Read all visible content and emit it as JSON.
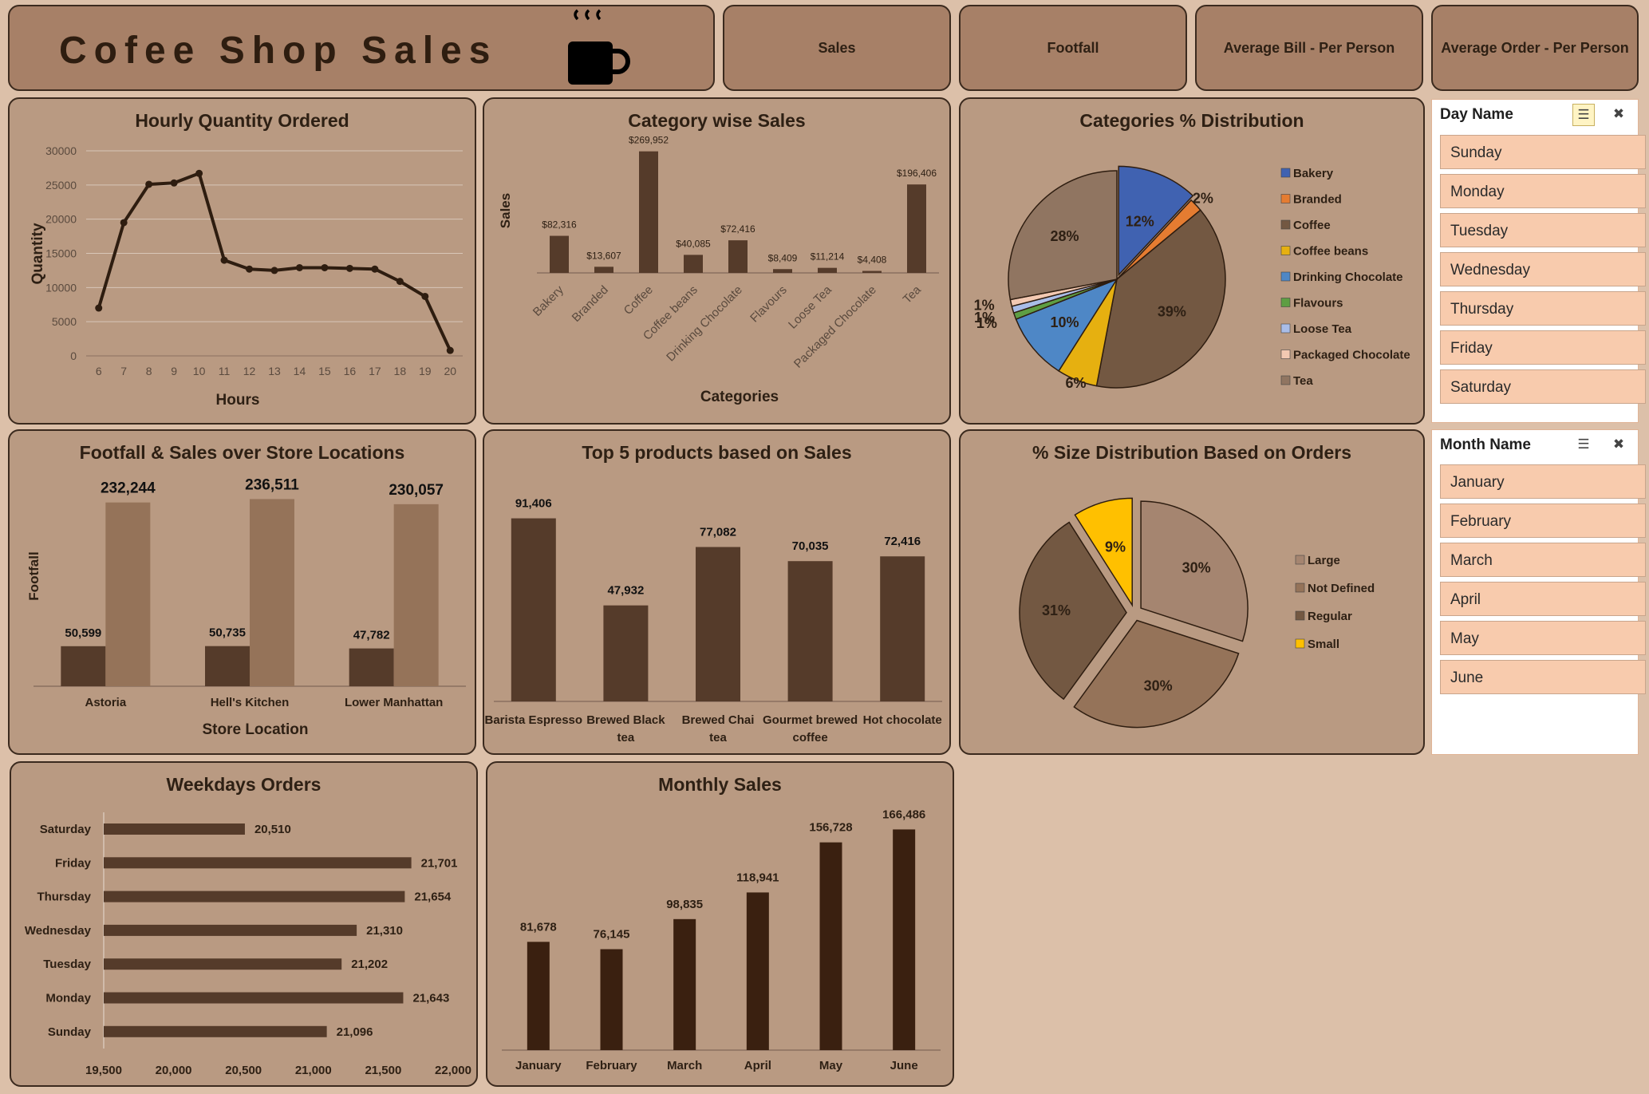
{
  "header": {
    "title": "Cofee Shop Sales",
    "kpis": [
      "Sales",
      "Footfall",
      "Average Bill - Per Person",
      "Average Order - Per Person"
    ]
  },
  "colors": {
    "dark_brown": "#553b2a",
    "light_brown": "#957359",
    "panel": "#b99a82",
    "line": "#2e1d10",
    "monthly_bar": "#3a2010",
    "slicer_item": "#f8cbad"
  },
  "slicers": {
    "day": {
      "title": "Day Name",
      "items": [
        "Sunday",
        "Monday",
        "Tuesday",
        "Wednesday",
        "Thursday",
        "Friday",
        "Saturday"
      ]
    },
    "month": {
      "title": "Month Name",
      "items": [
        "January",
        "February",
        "March",
        "April",
        "May",
        "June"
      ]
    }
  },
  "chart_data": [
    {
      "id": "hourly",
      "type": "line",
      "title": "Hourly Quantity Ordered",
      "xlabel": "Hours",
      "ylabel": "Quantity",
      "x": [
        6,
        7,
        8,
        9,
        10,
        11,
        12,
        13,
        14,
        15,
        16,
        17,
        18,
        19,
        20
      ],
      "values": [
        7000,
        19500,
        25100,
        25300,
        26700,
        14000,
        12700,
        12500,
        12900,
        12900,
        12800,
        12700,
        10900,
        8700,
        800
      ],
      "ylim": [
        0,
        30000
      ],
      "yticks": [
        "0",
        "5000",
        "10000",
        "15000",
        "20000",
        "25000",
        "30000"
      ],
      "grid": true
    },
    {
      "id": "category",
      "type": "bar",
      "title": "Category wise Sales",
      "xlabel": "Categories",
      "ylabel": "Sales",
      "categories": [
        "Bakery",
        "Branded",
        "Coffee",
        "Coffee beans",
        "Drinking Chocolate",
        "Flavours",
        "Loose Tea",
        "Packaged Chocolate",
        "Tea"
      ],
      "values": [
        82316,
        13607,
        269952,
        40085,
        72416,
        8409,
        11214,
        4408,
        196406
      ],
      "labels": [
        "$82,316",
        "$13,607",
        "$269,952",
        "$40,085",
        "$72,416",
        "$8,409",
        "$11,214",
        "$4,408",
        "$196,406"
      ],
      "ylim": [
        0,
        280000
      ]
    },
    {
      "id": "catpie",
      "type": "pie",
      "title": "Categories % Distribution",
      "categories": [
        "Bakery",
        "Branded",
        "Coffee",
        "Coffee beans",
        "Drinking Chocolate",
        "Flavours",
        "Loose Tea",
        "Packaged Chocolate",
        "Tea"
      ],
      "values": [
        12,
        2,
        39,
        6,
        10,
        1,
        1,
        1,
        28
      ],
      "labels": [
        "12%",
        "2%",
        "39%",
        "6%",
        "10%",
        "1%",
        "1%",
        "1%",
        "28%"
      ],
      "colors": [
        "#4062b1",
        "#e57c31",
        "#735842",
        "#e6b010",
        "#4e87c6",
        "#5e9e43",
        "#a9bde8",
        "#f3c9b2",
        "#907561"
      ],
      "legend": "right"
    },
    {
      "id": "footfall",
      "type": "bar",
      "title": "Footfall & Sales over Store Locations",
      "xlabel": "Store Location",
      "ylabel": "Footfall",
      "categories": [
        "Astoria",
        "Hell's Kitchen",
        "Lower Manhattan"
      ],
      "series": [
        {
          "values": [
            50599,
            50735,
            47782
          ],
          "labels": [
            "50,599",
            "50,735",
            "47,782"
          ],
          "color": "#553b2a"
        },
        {
          "values": [
            232244,
            236511,
            230057
          ],
          "labels": [
            "232,244",
            "236,511",
            "230,057"
          ],
          "color": "#957359"
        }
      ]
    },
    {
      "id": "top5",
      "type": "bar",
      "title": "Top 5 products based on Sales",
      "categories": [
        "Barista Espresso",
        "Brewed Black tea",
        "Brewed Chai tea",
        "Gourmet brewed coffee",
        "Hot chocolate"
      ],
      "values": [
        91406,
        47932,
        77082,
        70035,
        72416
      ],
      "labels": [
        "91,406",
        "47,932",
        "77,082",
        "70,035",
        "72,416"
      ],
      "ylim": [
        0,
        100000
      ]
    },
    {
      "id": "sizepie",
      "type": "pie",
      "title": "% Size Distribution Based on Orders",
      "categories": [
        "Large",
        "Not Defined",
        "Regular",
        "Small"
      ],
      "values": [
        30,
        30,
        31,
        9
      ],
      "labels": [
        "30%",
        "30%",
        "31%",
        "9%"
      ],
      "colors": [
        "#a58570",
        "#957359",
        "#735842",
        "#ffc000"
      ],
      "legend": "right"
    },
    {
      "id": "weekdays",
      "type": "bar",
      "orientation": "horizontal",
      "title": "Weekdays Orders",
      "categories": [
        "Saturday",
        "Friday",
        "Thursday",
        "Wednesday",
        "Tuesday",
        "Monday",
        "Sunday"
      ],
      "values": [
        20510,
        21701,
        21654,
        21310,
        21202,
        21643,
        21096
      ],
      "labels": [
        "20,510",
        "21,701",
        "21,654",
        "21,310",
        "21,202",
        "21,643",
        "21,096"
      ],
      "xlim": [
        19500,
        22000
      ],
      "xticks": [
        "19,500",
        "20,000",
        "20,500",
        "21,000",
        "21,500",
        "22,000"
      ]
    },
    {
      "id": "monthly",
      "type": "bar",
      "title": "Monthly Sales",
      "categories": [
        "January",
        "February",
        "March",
        "April",
        "May",
        "June"
      ],
      "values": [
        81678,
        76145,
        98835,
        118941,
        156728,
        166486
      ],
      "labels": [
        "81,678",
        "76,145",
        "98,835",
        "118,941",
        "156,728",
        "166,486"
      ],
      "ylim": [
        0,
        180000
      ]
    }
  ]
}
